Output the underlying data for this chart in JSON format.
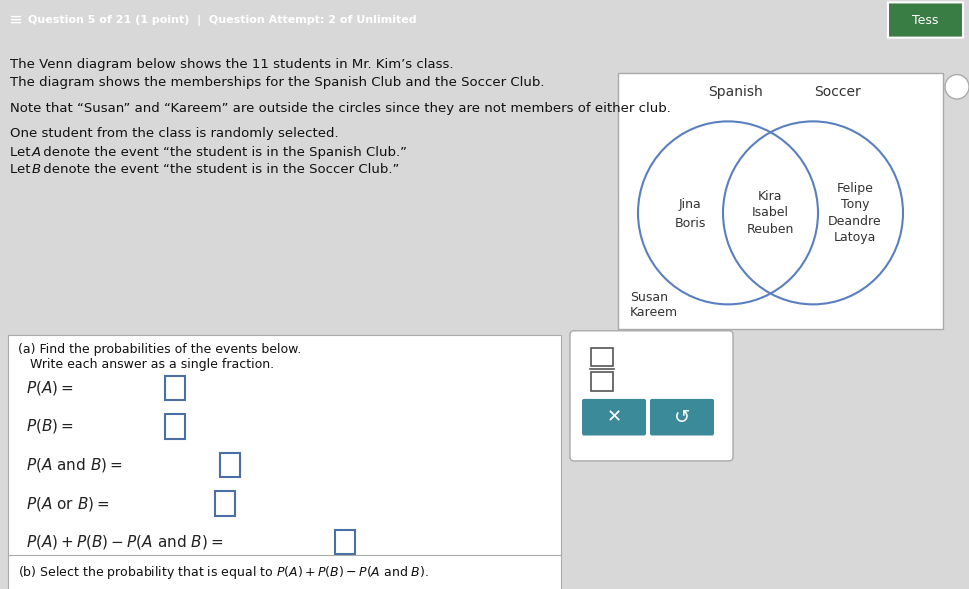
{
  "header_bg": "#3a7d44",
  "header_text": "Question 5 of 21 (1 point)  |  Question Attempt: 2 of Unlimited",
  "body_bg": "#d8d8d8",
  "panel_bg": "#ffffff",
  "venn_label_spanish": "Spanish",
  "venn_label_soccer": "Soccer",
  "spanish_only": [
    "Jina",
    "Boris"
  ],
  "intersection": [
    "Kira",
    "Isabel",
    "Reuben"
  ],
  "soccer_only": [
    "Felipe",
    "Tony",
    "Deandre",
    "Latoya"
  ],
  "outside": [
    "Susan",
    "Kareem"
  ],
  "venn_border": "#5a7fc0",
  "button_bg": "#3a8a9a",
  "input_box_color": "#4a6fa5",
  "title_line1": "The Venn diagram below shows the 11 students in Mr. Kim’s class.",
  "title_line2": "The diagram shows the memberships for the Spanish Club and the Soccer Club.",
  "note_line": "Note that “Susan” and “Kareem” are outside the circles since they are not members of either club.",
  "desc_line1": "One student from the class is randomly selected.",
  "desc_line2_italic": "A",
  "desc_line2_rest": " denote the event “the student is in the Spanish Club.”",
  "desc_line3_italic": "B",
  "desc_line3_rest": " denote the event “the student is in the Soccer Club.”"
}
